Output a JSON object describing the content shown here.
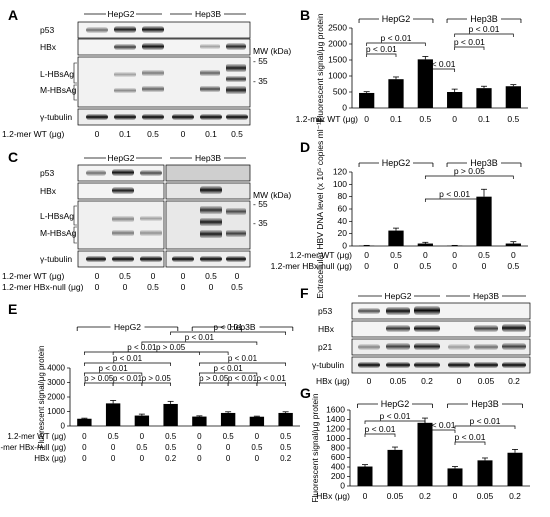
{
  "panel_letters": [
    "A",
    "B",
    "C",
    "D",
    "E",
    "F",
    "G"
  ],
  "panel_A": {
    "groups": [
      "HepG2",
      "Hep3B"
    ],
    "rows": [
      "p53",
      "HBx",
      "L-HBsAg",
      "M-HBsAg",
      "γ-tubulin"
    ],
    "mw_label": "MW (kDa)",
    "mw_marks": [
      "- 55",
      "- 35"
    ],
    "treat_label": "1.2-mer WT (μg)",
    "treat_values": [
      "0",
      "0.1",
      "0.5",
      "0",
      "0.1",
      "0.5"
    ]
  },
  "panel_C": {
    "groups": [
      "HepG2",
      "Hep3B"
    ],
    "rows": [
      "p53",
      "HBx",
      "L-HBsAg",
      "M-HBsAg",
      "γ-tubulin"
    ],
    "mw_label": "MW (kDa)",
    "mw_marks": [
      "- 55",
      "- 35"
    ],
    "treat_rows": [
      {
        "label": "1.2-mer WT (μg)",
        "values": [
          "0",
          "0.5",
          "0",
          "0",
          "0.5",
          "0"
        ]
      },
      {
        "label": "1.2-mer HBx-null (μg)",
        "values": [
          "0",
          "0",
          "0.5",
          "0",
          "0",
          "0.5"
        ]
      }
    ]
  },
  "panel_F": {
    "groups": [
      "HepG2",
      "Hep3B"
    ],
    "rows": [
      "p53",
      "HBx",
      "p21",
      "γ-tubulin"
    ],
    "treat_label": "HBx (μg)",
    "treat_values": [
      "0",
      "0.05",
      "0.2",
      "0",
      "0.05",
      "0.2"
    ]
  },
  "chart_data": [
    {
      "panel": "B",
      "type": "bar",
      "ylabel": "Fluorescent signal/μg protein",
      "ylim": [
        0,
        2500
      ],
      "yticks": [
        "0",
        "500",
        "1000",
        "1500",
        "2000",
        "2500"
      ],
      "groups": [
        "HepG2",
        "Hep3B"
      ],
      "values": [
        470,
        900,
        1520,
        500,
        620,
        680
      ],
      "errors": [
        40,
        70,
        90,
        90,
        60,
        50
      ],
      "treat_rows": [
        {
          "label": "1.2-mer WT (μg)",
          "values": [
            "0",
            "0.1",
            "0.5",
            "0",
            "0.1",
            "0.5"
          ]
        }
      ],
      "brackets": [
        "p < 0.01",
        "p < 0.01",
        "p < 0.01",
        "p < 0.01",
        "p < 0.01"
      ]
    },
    {
      "panel": "D",
      "type": "bar",
      "ylabel": "Extracellular HBV DNA level (x 10⁵ copies ml⁻¹)",
      "ylim": [
        0,
        120
      ],
      "yticks": [
        "0",
        "20",
        "40",
        "60",
        "80",
        "100",
        "120"
      ],
      "groups": [
        "HepG2",
        "Hep3B"
      ],
      "values": [
        0.5,
        25,
        4,
        0.5,
        80,
        4
      ],
      "errors": [
        0.5,
        4,
        2,
        0.5,
        12,
        3
      ],
      "treat_rows": [
        {
          "label": "1.2-mer WT (μg)",
          "values": [
            "0",
            "0.5",
            "0",
            "0",
            "0.5",
            "0"
          ]
        },
        {
          "label": "1.2-mer HBx-null (μg)",
          "values": [
            "0",
            "0",
            "0.5",
            "0",
            "0",
            "0.5"
          ]
        }
      ],
      "brackets": [
        "p > 0.05",
        "p < 0.01"
      ]
    },
    {
      "panel": "E",
      "type": "bar",
      "ylabel": "Fluorescent signal/μg protein",
      "ylim": [
        0,
        4000
      ],
      "yticks": [
        "0",
        "1000",
        "2000",
        "3000",
        "4000"
      ],
      "groups": [
        "HepG2",
        "Hep3B"
      ],
      "values": [
        500,
        1560,
        720,
        1520,
        650,
        900,
        640,
        900
      ],
      "errors": [
        40,
        200,
        100,
        180,
        50,
        80,
        40,
        80
      ],
      "treat_rows": [
        {
          "label": "1.2-mer WT (μg)",
          "values": [
            "0",
            "0.5",
            "0",
            "0.5",
            "0",
            "0.5",
            "0",
            "0.5"
          ]
        },
        {
          "label": "1.2-mer HBx-null (μg)",
          "values": [
            "0",
            "0",
            "0.5",
            "0.5",
            "0",
            "0",
            "0.5",
            "0.5"
          ]
        },
        {
          "label": "HBx (μg)",
          "values": [
            "0",
            "0",
            "0",
            "0.2",
            "0",
            "0",
            "0",
            "0.2"
          ]
        }
      ],
      "brackets": [
        "p > 0.05",
        "p < 0.01",
        "p > 0.05",
        "p < 0.01",
        "p < 0.01",
        "p > 0.05",
        "p < 0.01",
        "p < 0.01",
        "p < 0.01",
        "p < 0.01",
        "p > 0.05",
        "p < 0.01",
        "p < 0.01",
        "p < 0.01"
      ]
    },
    {
      "panel": "G",
      "type": "bar",
      "ylabel": "Fluorescent signal/μg protein",
      "ylim": [
        0,
        1600
      ],
      "yticks": [
        "0",
        "200",
        "400",
        "600",
        "800",
        "1000",
        "1200",
        "1400",
        "1600"
      ],
      "groups": [
        "HepG2",
        "Hep3B"
      ],
      "values": [
        410,
        760,
        1330,
        370,
        540,
        700
      ],
      "errors": [
        40,
        60,
        100,
        40,
        50,
        70
      ],
      "treat_rows": [
        {
          "label": "HBx (μg)",
          "values": [
            "0",
            "0.05",
            "0.2",
            "0",
            "0.05",
            "0.2"
          ]
        }
      ],
      "brackets": [
        "p < 0.01",
        "p < 0.01",
        "p < 0.01",
        "p < 0.01",
        "p < 0.01"
      ]
    }
  ]
}
